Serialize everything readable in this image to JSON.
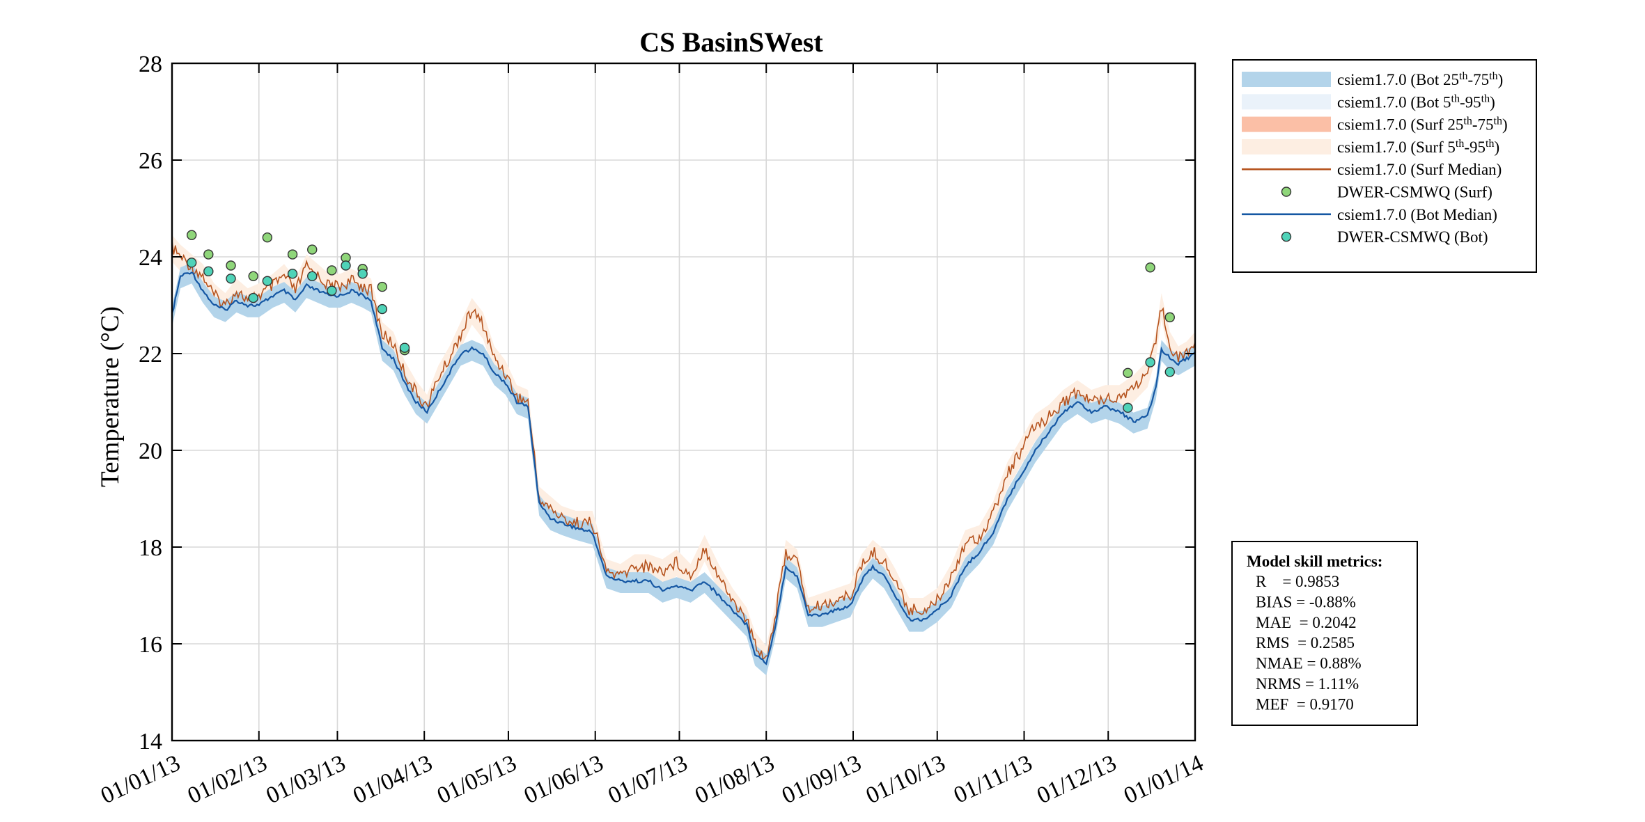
{
  "chart_data": {
    "type": "line",
    "title": "CS BasinSWest",
    "ylabel": "Temperature (°C)",
    "ylim": [
      14,
      28
    ],
    "yticks": [
      "14",
      "16",
      "18",
      "20",
      "22",
      "24",
      "26",
      "28"
    ],
    "xlim": [
      "2013-01-01",
      "2014-01-01"
    ],
    "xticks": [
      {
        "date": "2013-01-01",
        "label": "01/01/13"
      },
      {
        "date": "2013-02-01",
        "label": "01/02/13"
      },
      {
        "date": "2013-03-01",
        "label": "01/03/13"
      },
      {
        "date": "2013-04-01",
        "label": "01/04/13"
      },
      {
        "date": "2013-05-01",
        "label": "01/05/13"
      },
      {
        "date": "2013-06-01",
        "label": "01/06/13"
      },
      {
        "date": "2013-07-01",
        "label": "01/07/13"
      },
      {
        "date": "2013-08-01",
        "label": "01/08/13"
      },
      {
        "date": "2013-09-01",
        "label": "01/09/13"
      },
      {
        "date": "2013-10-01",
        "label": "01/10/13"
      },
      {
        "date": "2013-11-01",
        "label": "01/11/13"
      },
      {
        "date": "2013-12-01",
        "label": "01/12/13"
      },
      {
        "date": "2014-01-01",
        "label": "01/01/14"
      }
    ],
    "grid": true,
    "legend_position": "outside-top-right",
    "legend": [
      {
        "type": "band",
        "color": "#b3d4ea",
        "parts": [
          {
            "t": "csiem1.7.0 (Bot 25"
          },
          {
            "t": "th",
            "sup": true
          },
          {
            "t": "-75"
          },
          {
            "t": "th",
            "sup": true
          },
          {
            "t": ")"
          }
        ]
      },
      {
        "type": "band",
        "color": "#eaf2fa",
        "parts": [
          {
            "t": "csiem1.7.0 (Bot 5"
          },
          {
            "t": "th",
            "sup": true
          },
          {
            "t": "-95"
          },
          {
            "t": "th",
            "sup": true
          },
          {
            "t": ")"
          }
        ]
      },
      {
        "type": "band",
        "color": "#fbbfa6",
        "parts": [
          {
            "t": "csiem1.7.0 (Surf 25"
          },
          {
            "t": "th",
            "sup": true
          },
          {
            "t": "-75"
          },
          {
            "t": "th",
            "sup": true
          },
          {
            "t": ")"
          }
        ]
      },
      {
        "type": "band",
        "color": "#fdeee2",
        "parts": [
          {
            "t": "csiem1.7.0 (Surf 5"
          },
          {
            "t": "th",
            "sup": true
          },
          {
            "t": "-95"
          },
          {
            "t": "th",
            "sup": true
          },
          {
            "t": ")"
          }
        ]
      },
      {
        "type": "line",
        "color": "#b5531e",
        "parts": [
          {
            "t": "csiem1.7.0 (Surf Median)"
          }
        ]
      },
      {
        "type": "marker",
        "color": "#8fd67a",
        "parts": [
          {
            "t": "DWER-CSMWQ (Surf)"
          }
        ]
      },
      {
        "type": "line",
        "color": "#1557a3",
        "parts": [
          {
            "t": "csiem1.7.0 (Bot Median)"
          }
        ]
      },
      {
        "type": "marker",
        "color": "#4fd3b8",
        "parts": [
          {
            "t": "DWER-CSMWQ (Bot)"
          }
        ]
      }
    ],
    "colors": {
      "surf_median": "#b5531e",
      "bot_median": "#1557a3",
      "surf_obs": "#8fd67a",
      "bot_obs": "#4fd3b8",
      "surf_band_outer": "#fdeee2",
      "bot_band_inner": "#b3d4ea"
    },
    "series": [
      {
        "key": "surf_median",
        "x": [
          "2013-01-01",
          "2013-01-04",
          "2013-01-08",
          "2013-01-12",
          "2013-01-16",
          "2013-01-20",
          "2013-01-24",
          "2013-01-28",
          "2013-02-01",
          "2013-02-06",
          "2013-02-10",
          "2013-02-14",
          "2013-02-18",
          "2013-02-22",
          "2013-02-26",
          "2013-03-02",
          "2013-03-06",
          "2013-03-10",
          "2013-03-13",
          "2013-03-17",
          "2013-03-21",
          "2013-03-25",
          "2013-03-29",
          "2013-04-02",
          "2013-04-06",
          "2013-04-10",
          "2013-04-14",
          "2013-04-18",
          "2013-04-22",
          "2013-04-26",
          "2013-04-30",
          "2013-05-04",
          "2013-05-08",
          "2013-05-12",
          "2013-05-16",
          "2013-05-20",
          "2013-05-25",
          "2013-05-31",
          "2013-06-05",
          "2013-06-10",
          "2013-06-15",
          "2013-06-20",
          "2013-06-25",
          "2013-06-30",
          "2013-07-05",
          "2013-07-10",
          "2013-07-15",
          "2013-07-20",
          "2013-07-25",
          "2013-07-28",
          "2013-08-01",
          "2013-08-04",
          "2013-08-08",
          "2013-08-12",
          "2013-08-16",
          "2013-08-21",
          "2013-08-26",
          "2013-08-31",
          "2013-09-04",
          "2013-09-08",
          "2013-09-12",
          "2013-09-16",
          "2013-09-21",
          "2013-09-26",
          "2013-10-01",
          "2013-10-06",
          "2013-10-11",
          "2013-10-16",
          "2013-10-21",
          "2013-10-26",
          "2013-10-31",
          "2013-11-05",
          "2013-11-10",
          "2013-11-15",
          "2013-11-20",
          "2013-11-25",
          "2013-11-30",
          "2013-12-05",
          "2013-12-10",
          "2013-12-15",
          "2013-12-18",
          "2013-12-20",
          "2013-12-23",
          "2013-12-26",
          "2013-12-29",
          "2014-01-01"
        ],
        "values": [
          24.2,
          24.0,
          23.8,
          23.6,
          23.2,
          23.0,
          23.3,
          23.1,
          23.2,
          23.4,
          23.6,
          23.3,
          23.8,
          23.6,
          23.4,
          23.4,
          23.5,
          23.4,
          23.3,
          22.4,
          22.2,
          21.6,
          21.2,
          20.9,
          21.5,
          21.9,
          22.4,
          22.9,
          22.6,
          21.9,
          21.6,
          21.1,
          21.0,
          19.0,
          18.8,
          18.6,
          18.5,
          18.5,
          17.5,
          17.4,
          17.6,
          17.6,
          17.5,
          17.7,
          17.4,
          18.0,
          17.4,
          16.9,
          16.5,
          16.0,
          15.7,
          16.5,
          17.9,
          17.7,
          16.7,
          16.8,
          16.9,
          17.0,
          17.6,
          17.9,
          17.7,
          17.3,
          16.7,
          16.7,
          16.9,
          17.4,
          18.1,
          18.2,
          18.7,
          19.5,
          20.0,
          20.5,
          20.7,
          21.0,
          21.2,
          21.0,
          21.1,
          21.1,
          21.3,
          21.6,
          22.2,
          23.0,
          22.2,
          21.9,
          22.0,
          22.2
        ]
      },
      {
        "key": "bot_median",
        "x": [
          "2013-01-01",
          "2013-01-04",
          "2013-01-08",
          "2013-01-12",
          "2013-01-16",
          "2013-01-20",
          "2013-01-24",
          "2013-01-28",
          "2013-02-01",
          "2013-02-06",
          "2013-02-10",
          "2013-02-14",
          "2013-02-18",
          "2013-02-22",
          "2013-02-26",
          "2013-03-02",
          "2013-03-06",
          "2013-03-10",
          "2013-03-13",
          "2013-03-17",
          "2013-03-21",
          "2013-03-25",
          "2013-03-29",
          "2013-04-02",
          "2013-04-06",
          "2013-04-10",
          "2013-04-14",
          "2013-04-18",
          "2013-04-22",
          "2013-04-26",
          "2013-04-30",
          "2013-05-04",
          "2013-05-08",
          "2013-05-12",
          "2013-05-16",
          "2013-05-20",
          "2013-05-25",
          "2013-05-31",
          "2013-06-05",
          "2013-06-10",
          "2013-06-15",
          "2013-06-20",
          "2013-06-25",
          "2013-06-30",
          "2013-07-05",
          "2013-07-10",
          "2013-07-15",
          "2013-07-20",
          "2013-07-25",
          "2013-07-28",
          "2013-08-01",
          "2013-08-04",
          "2013-08-08",
          "2013-08-12",
          "2013-08-16",
          "2013-08-21",
          "2013-08-26",
          "2013-08-31",
          "2013-09-04",
          "2013-09-08",
          "2013-09-12",
          "2013-09-16",
          "2013-09-21",
          "2013-09-26",
          "2013-10-01",
          "2013-10-06",
          "2013-10-11",
          "2013-10-16",
          "2013-10-21",
          "2013-10-26",
          "2013-10-31",
          "2013-11-05",
          "2013-11-10",
          "2013-11-15",
          "2013-11-20",
          "2013-11-25",
          "2013-11-30",
          "2013-12-05",
          "2013-12-10",
          "2013-12-15",
          "2013-12-18",
          "2013-12-20",
          "2013-12-23",
          "2013-12-26",
          "2013-12-29",
          "2014-01-01"
        ],
        "values": [
          22.8,
          23.6,
          23.7,
          23.3,
          23.0,
          22.9,
          23.1,
          23.0,
          23.0,
          23.2,
          23.3,
          23.1,
          23.4,
          23.3,
          23.2,
          23.2,
          23.3,
          23.2,
          23.1,
          22.1,
          21.9,
          21.4,
          21.0,
          20.8,
          21.2,
          21.6,
          22.0,
          22.1,
          22.0,
          21.6,
          21.4,
          21.0,
          20.9,
          18.9,
          18.6,
          18.5,
          18.4,
          18.3,
          17.4,
          17.3,
          17.3,
          17.3,
          17.1,
          17.2,
          17.1,
          17.3,
          17.0,
          16.7,
          16.4,
          15.8,
          15.6,
          16.3,
          17.6,
          17.4,
          16.6,
          16.6,
          16.7,
          16.8,
          17.3,
          17.6,
          17.4,
          17.0,
          16.5,
          16.5,
          16.7,
          17.0,
          17.6,
          17.9,
          18.3,
          19.0,
          19.5,
          20.0,
          20.4,
          20.8,
          21.0,
          20.8,
          20.9,
          20.8,
          20.6,
          20.7,
          21.3,
          22.1,
          21.9,
          21.8,
          21.9,
          22.0
        ]
      },
      {
        "key": "surf_obs",
        "x": [
          "2013-01-08",
          "2013-01-14",
          "2013-01-22",
          "2013-01-30",
          "2013-02-04",
          "2013-02-13",
          "2013-02-20",
          "2013-02-27",
          "2013-03-04",
          "2013-03-10",
          "2013-03-17",
          "2013-03-25",
          "2013-12-08",
          "2013-12-16",
          "2013-12-23"
        ],
        "values": [
          24.45,
          24.05,
          23.82,
          23.6,
          24.4,
          24.05,
          24.15,
          23.72,
          23.98,
          23.75,
          23.38,
          22.07,
          21.6,
          23.78,
          22.75
        ]
      },
      {
        "key": "bot_obs",
        "x": [
          "2013-01-08",
          "2013-01-14",
          "2013-01-22",
          "2013-01-30",
          "2013-02-04",
          "2013-02-13",
          "2013-02-20",
          "2013-02-27",
          "2013-03-04",
          "2013-03-10",
          "2013-03-17",
          "2013-03-25",
          "2013-12-08",
          "2013-12-16",
          "2013-12-23"
        ],
        "values": [
          23.88,
          23.7,
          23.55,
          23.15,
          23.5,
          23.65,
          23.6,
          23.3,
          23.82,
          23.65,
          22.92,
          22.12,
          20.88,
          21.82,
          21.62
        ]
      }
    ],
    "metrics": {
      "heading": "Model skill metrics:",
      "lines": [
        "R    = 0.9853",
        "BIAS = -0.88%",
        "MAE  = 0.2042",
        "RMS  = 0.2585",
        "NMAE = 0.88%",
        "NRMS = 1.11%",
        "MEF  = 0.9170"
      ]
    }
  }
}
